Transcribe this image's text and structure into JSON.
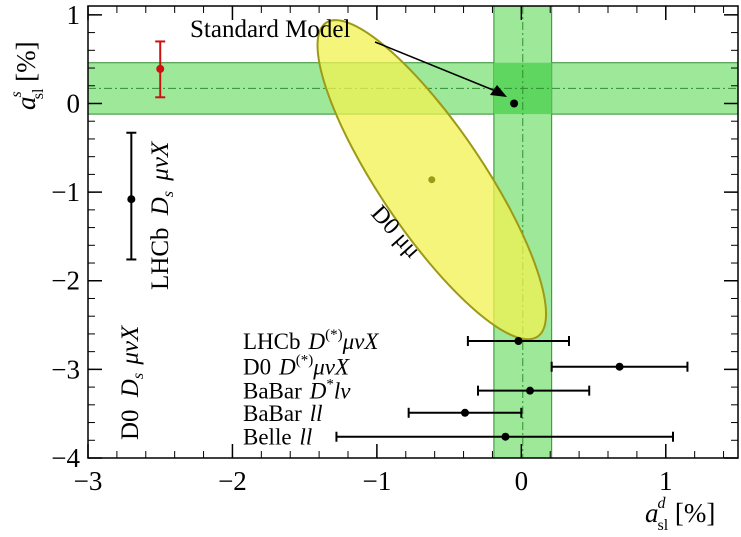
{
  "chart_data": {
    "type": "scatter",
    "xlim": [
      -3,
      1.5
    ],
    "ylim": [
      -4,
      1.1
    ],
    "x_ticks": [
      -3,
      -2,
      -1,
      0,
      1
    ],
    "y_ticks": [
      -4,
      -3,
      -2,
      -1,
      0,
      1
    ],
    "x_tick_labels": [
      "−3",
      "−2",
      "−1",
      "0",
      "1"
    ],
    "y_tick_labels": [
      "−4",
      "−3",
      "−2",
      "−1",
      "0",
      "1"
    ],
    "xlabel": {
      "main": "a",
      "sup": "d",
      "sub": "sl",
      "unit": " [%]"
    },
    "ylabel": {
      "main": "a",
      "sup": "s",
      "sub": "sl",
      "unit": " [%]"
    },
    "grid": false,
    "colors": {
      "band_fill": "#9ee89a",
      "band_line": "#2f8f2f",
      "overlap": "#5fd65f",
      "ellipse_fill": "#f2f250",
      "ellipse_line": "#9c9a16",
      "lhcb_ds": "#cc1111",
      "black": "#000000"
    },
    "bands": {
      "asl_s_band": {
        "center": 0.17,
        "low": -0.12,
        "high": 0.46
      },
      "asl_d_band": {
        "center": 0.01,
        "low": -0.19,
        "high": 0.21
      }
    },
    "ellipse": {
      "label": "D0 μμ",
      "center": [
        -0.62,
        -0.86
      ],
      "semi_major": 1.31,
      "semi_minor": 0.36,
      "angle_deg": -56
    },
    "standard_model": {
      "label": "Standard Model",
      "x": -0.05,
      "y": 0.0
    },
    "vertical_measurements": [
      {
        "name": "LHCb",
        "label": "LHCb D",
        "subs": "s",
        "tail": " μνX",
        "x": -2.5,
        "y": 0.39,
        "low": 0.07,
        "high": 0.7,
        "color": "#cc1111"
      },
      {
        "name": "D0",
        "label": "D0 D",
        "subs": "s",
        "tail": "μνX",
        "x": -2.7,
        "y": -1.08,
        "low": -1.76,
        "high": -0.33,
        "color": "#000000"
      }
    ],
    "horizontal_measurements": [
      {
        "label_main": "LHCb",
        "label_rest": "D",
        "sup": "(*)",
        "tail": "μνX",
        "x": -0.02,
        "low": -0.37,
        "high": 0.33,
        "y": -2.68
      },
      {
        "label_main": "D0",
        "label_rest": "D",
        "sup": "(*)",
        "tail": "μνX",
        "x": 0.68,
        "low": 0.21,
        "high": 1.15,
        "y": -2.97
      },
      {
        "label_main": "BaBar",
        "label_rest": "D",
        "sup": "*",
        "tail": "lν",
        "x": 0.06,
        "low": -0.3,
        "high": 0.47,
        "y": -3.24
      },
      {
        "label_main": "BaBar",
        "label_rest": "ll",
        "sup": "",
        "tail": "",
        "x": -0.39,
        "low": -0.78,
        "high": 0.0,
        "y": -3.49
      },
      {
        "label_main": "Belle",
        "label_rest": "ll",
        "sup": "",
        "tail": "",
        "x": -0.11,
        "low": -1.28,
        "high": 1.05,
        "y": -3.76
      }
    ]
  }
}
